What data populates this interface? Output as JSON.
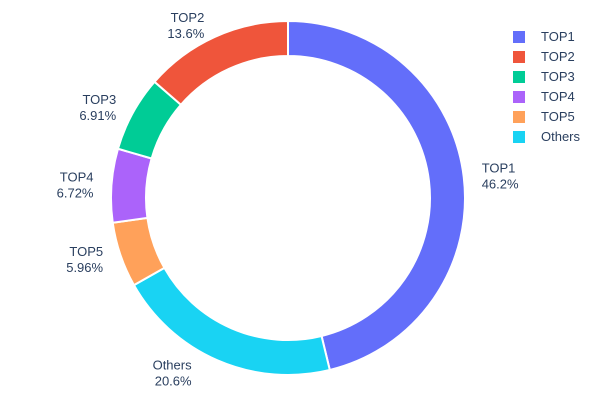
{
  "chart_data": {
    "type": "pie",
    "subtype": "donut",
    "title": "",
    "hole": 0.8,
    "label_position": "outside",
    "labels": [
      "TOP1",
      "TOP2",
      "TOP3",
      "TOP4",
      "TOP5",
      "Others"
    ],
    "values": [
      46.2,
      13.6,
      6.91,
      6.72,
      5.96,
      20.6
    ],
    "percent_labels": [
      "46.2%",
      "13.6%",
      "6.91%",
      "6.72%",
      "5.96%",
      "20.6%"
    ],
    "colors": [
      "#636EFA",
      "#EF553B",
      "#00CC96",
      "#AB63FA",
      "#FFA15A",
      "#19D3F3"
    ],
    "legend": {
      "position": "right",
      "entries": [
        "TOP1",
        "TOP2",
        "TOP3",
        "TOP4",
        "TOP5",
        "Others"
      ]
    },
    "text_color": "#2a3f5f",
    "background": "#ffffff",
    "slice_gap_color": "#ffffff"
  }
}
